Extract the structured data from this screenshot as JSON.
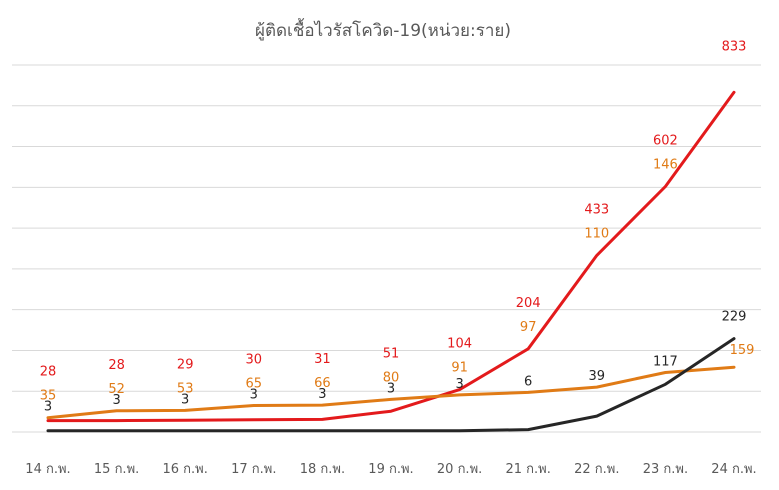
{
  "chart_data": {
    "type": "line",
    "title": "ผู้ติดเชื้อไวรัสโควิด-19(หน่วย:ราย)",
    "categories": [
      "14 ก.พ.",
      "15 ก.พ.",
      "16 ก.พ.",
      "17 ก.พ.",
      "18 ก.พ.",
      "19 ก.พ.",
      "20 ก.พ.",
      "21 ก.พ.",
      "22 ก.พ.",
      "23 ก.พ.",
      "24 ก.พ."
    ],
    "series": [
      {
        "values": [
          28,
          28,
          29,
          30,
          31,
          51,
          104,
          204,
          433,
          602,
          833
        ],
        "color": "#e31a1c"
      },
      {
        "values": [
          35,
          52,
          53,
          65,
          66,
          80,
          91,
          97,
          110,
          146,
          159
        ],
        "color": "#e07b16"
      },
      {
        "values": [
          3,
          3,
          3,
          3,
          3,
          3,
          3,
          6,
          39,
          117,
          229
        ],
        "color": "#262626"
      }
    ],
    "ylim": [
      0,
      900
    ],
    "grid": true,
    "legend": "none"
  }
}
